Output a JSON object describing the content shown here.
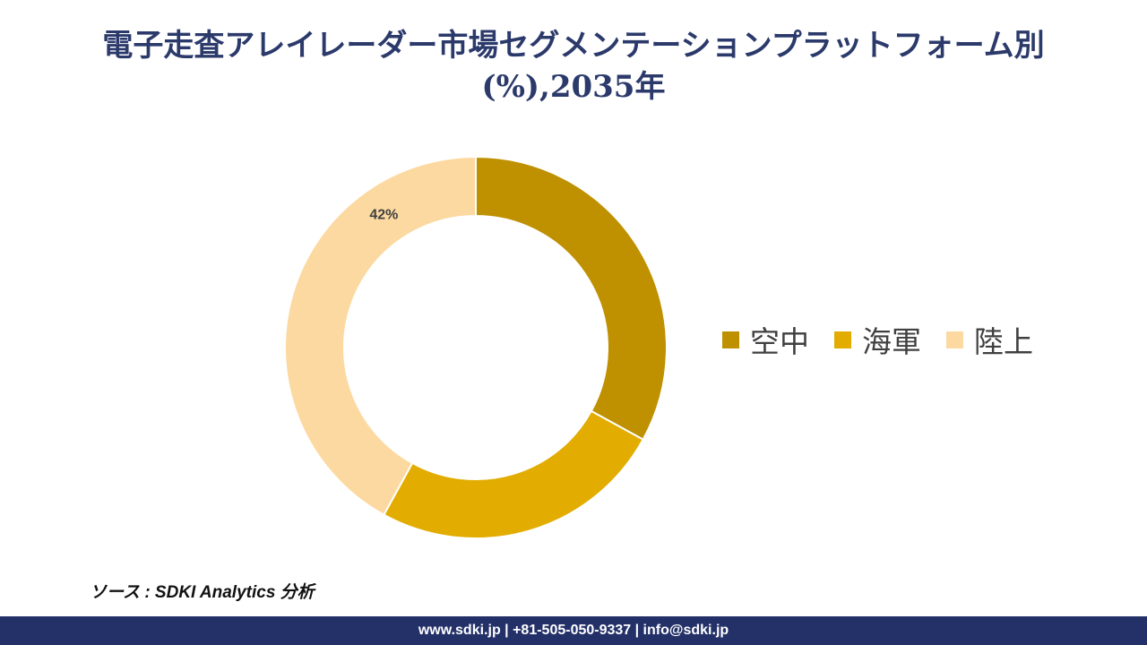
{
  "chart_data": {
    "type": "pie",
    "title_line1": "電子走査アレイレーダー市場セグメンテーションプラットフォーム別",
    "title_line2": "(%),2035年",
    "series": [
      {
        "name": "空中",
        "value": 33,
        "color": "#bf9000",
        "label": ""
      },
      {
        "name": "海軍",
        "value": 25,
        "color": "#e2ac00",
        "label": ""
      },
      {
        "name": "陸上",
        "value": 42,
        "color": "#fcd9a0",
        "label": "42%"
      }
    ],
    "legend_position": "right"
  },
  "source": "ソース : SDKI Analytics 分析",
  "footer": "www.sdki.jp | +81-505-050-9337 | info@sdki.jp"
}
